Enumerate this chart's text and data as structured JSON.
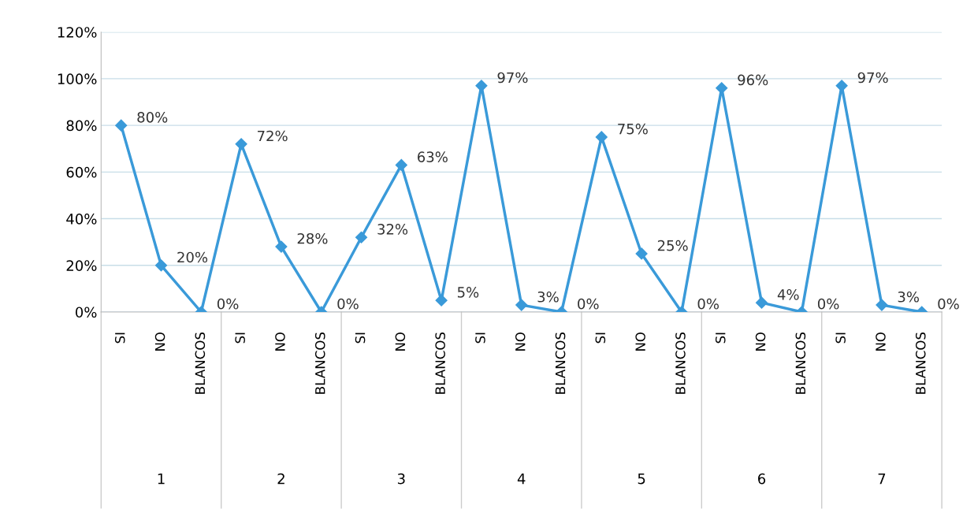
{
  "chart_data": {
    "type": "line",
    "categories": [
      "SI",
      "NO",
      "BLANCOS",
      "SI",
      "NO",
      "BLANCOS",
      "SI",
      "NO",
      "BLANCOS",
      "SI",
      "NO",
      "BLANCOS",
      "SI",
      "NO",
      "BLANCOS",
      "SI",
      "NO",
      "BLANCOS",
      "SI",
      "NO",
      "BLANCOS"
    ],
    "series": [
      {
        "color": "#3a9ad9",
        "values": [
          80,
          20,
          0,
          72,
          28,
          0,
          32,
          63,
          5,
          97,
          3,
          0,
          75,
          25,
          0,
          96,
          4,
          0,
          97,
          3,
          0
        ],
        "value_labels": [
          "80%",
          "20%",
          "0%",
          "72%",
          "28%",
          "0%",
          "32%",
          "63%",
          "5%",
          "97%",
          "3%",
          "0%",
          "75%",
          "25%",
          "0%",
          "96%",
          "4%",
          "0%",
          "97%",
          "3%",
          "0%"
        ]
      }
    ],
    "annotations": [
      "1",
      "2",
      "3",
      "4",
      "5",
      "6",
      "7"
    ],
    "ylim": [
      0,
      120
    ],
    "yticks": [
      {
        "value": 0,
        "label": "0%"
      },
      {
        "value": 20,
        "label": "20%"
      },
      {
        "value": 40,
        "label": "40%"
      },
      {
        "value": 60,
        "label": "60%"
      },
      {
        "value": 80,
        "label": "80%"
      },
      {
        "value": 100,
        "label": "100%"
      },
      {
        "value": 120,
        "label": "120%"
      }
    ],
    "grid": "y",
    "marker": "diamond",
    "line_style": "solid",
    "legend": false
  }
}
